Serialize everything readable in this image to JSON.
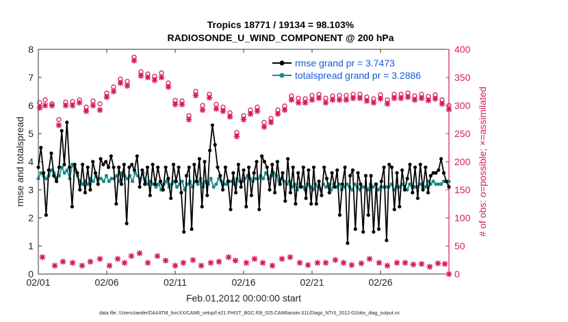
{
  "chart_data": {
    "type": "line",
    "title": "Tropics 18771 / 19134 = 98.103%",
    "subtitle": "RADIOSONDE_U_WIND_COMPONENT @ 200 hPa",
    "xlabel": "Feb.01,2012 00:00:00 start",
    "ylabel": "rmse and totalspread",
    "ylabel_right": "# of obs: o=possible; ×=assimilated",
    "ylim": [
      0,
      8
    ],
    "ylim_right": [
      0,
      400
    ],
    "xlim": [
      0,
      30
    ],
    "x_tick_values": [
      0,
      5,
      10,
      15,
      20,
      25
    ],
    "x_tick_labels": [
      "02/01",
      "02/06",
      "02/11",
      "02/16",
      "02/21",
      "02/26"
    ],
    "y_ticks": [
      "0",
      "1",
      "2",
      "3",
      "4",
      "5",
      "6",
      "7",
      "8"
    ],
    "y_ticks_right": [
      "0",
      "50",
      "100",
      "150",
      "200",
      "250",
      "300",
      "350",
      "400"
    ],
    "colors": {
      "rmse": "#000000",
      "spread": "#1a8a8a",
      "obs": "#d6195f",
      "legend_text": "#1559d6"
    },
    "series": [
      {
        "name": "rmse grand pr = 3.7473",
        "values": [
          3.8,
          4.5,
          3.6,
          2.1,
          3.7,
          4.3,
          3.5,
          3.3,
          3.8,
          5.1,
          3.9,
          5.4,
          3.8,
          2.4,
          3.9,
          3.6,
          3.0,
          3.9,
          2.9,
          3.8,
          3.0,
          4.0,
          3.6,
          3.2,
          4.1,
          3.9,
          4.0,
          3.8,
          4.2,
          3.8,
          2.5,
          3.8,
          3.2,
          3.9,
          1.8,
          3.8,
          3.9,
          3.7,
          4.2,
          3.1,
          3.7,
          3.2,
          3.8,
          2.8,
          3.9,
          3.2,
          3.8,
          3.3,
          3.0,
          3.8,
          3.4,
          2.7,
          3.9,
          3.3,
          3.8,
          2.9,
          1.5,
          3.5,
          3.8,
          1.6,
          3.9,
          3.3,
          4.1,
          2.4,
          4.0,
          2.8,
          4.4,
          5.3,
          4.6,
          3.8,
          3.5,
          3.0,
          3.8,
          3.3,
          2.3,
          3.6,
          2.9,
          3.9,
          3.1,
          3.7,
          2.4,
          3.8,
          2.8,
          3.6,
          4.0,
          2.3,
          4.2,
          4.0,
          3.8,
          3.0,
          3.9,
          2.9,
          4.0,
          3.2,
          3.6,
          2.6,
          4.1,
          2.9,
          3.8,
          2.5,
          3.6,
          3.1,
          3.8,
          2.7,
          3.7,
          2.5,
          3.8,
          2.5,
          3.3,
          2.8,
          3.8,
          3.4,
          2.9,
          3.6,
          3.1,
          3.7,
          2.1,
          3.2,
          3.8,
          1.1,
          3.5,
          3.7,
          1.6,
          3.6,
          3.2,
          1.5,
          3.5,
          2.1,
          3.5,
          1.5,
          3.2,
          1.6,
          3.3,
          3.8,
          1.2,
          3.9,
          3.8,
          2.3,
          3.6,
          2.4,
          3.7,
          3.0,
          3.4,
          3.9,
          2.9,
          3.8,
          2.7,
          3.9,
          3.0,
          3.8,
          2.9,
          3.5,
          3.6,
          3.6,
          3.7,
          4.1,
          3.6,
          3.3,
          3.1
        ]
      },
      {
        "name": "totalspread grand pr = 3.2886",
        "values": [
          3.4,
          3.6,
          3.5,
          3.4,
          3.5,
          3.7,
          3.6,
          3.4,
          3.5,
          3.8,
          3.6,
          3.7,
          3.4,
          3.9,
          3.7,
          3.5,
          3.3,
          3.2,
          3.3,
          3.2,
          3.4,
          3.3,
          3.5,
          3.4,
          3.4,
          3.3,
          3.5,
          3.3,
          3.4,
          3.4,
          3.5,
          3.3,
          3.6,
          3.5,
          3.4,
          3.5,
          3.3,
          3.6,
          3.5,
          3.4,
          3.6,
          3.3,
          3.2,
          3.3,
          3.2,
          3.1,
          3.2,
          3.0,
          3.2,
          3.3,
          3.1,
          3.2,
          3.3,
          3.1,
          3.2,
          3.3,
          3.0,
          3.2,
          3.3,
          3.1,
          3.3,
          3.2,
          3.4,
          3.1,
          3.3,
          3.2,
          3.4,
          3.1,
          3.2,
          3.4,
          3.3,
          3.2,
          3.2,
          3.3,
          3.3,
          3.2,
          3.4,
          3.3,
          3.3,
          3.4,
          3.5,
          3.4,
          3.3,
          3.4,
          3.4,
          3.5,
          3.4,
          3.6,
          3.4,
          3.5,
          3.6,
          3.5,
          3.3,
          3.4,
          3.3,
          3.2,
          3.3,
          3.1,
          3.2,
          3.0,
          3.2,
          3.1,
          3.0,
          3.2,
          3.1,
          3.0,
          3.2,
          3.1,
          3.0,
          3.2,
          3.1,
          3.2,
          3.0,
          3.2,
          3.1,
          3.2,
          3.0,
          3.1,
          3.2,
          3.1,
          3.0,
          3.2,
          3.1,
          3.0,
          3.1,
          3.1,
          3.0,
          3.2,
          3.1,
          3.2,
          3.0,
          3.1,
          3.1,
          3.1,
          3.1,
          3.2,
          3.0,
          3.1,
          3.1,
          3.2,
          3.1,
          3.0,
          3.2,
          3.1,
          3.1,
          3.1,
          3.2,
          3.1,
          3.1,
          3.3,
          3.2,
          3.3,
          3.2,
          3.2,
          3.2,
          3.3,
          3.3,
          3.3
        ]
      }
    ],
    "possible_obs": [
      [
        0.1,
        305
      ],
      [
        0.5,
        310
      ],
      [
        1.0,
        303
      ],
      [
        1.5,
        275
      ],
      [
        2.0,
        306
      ],
      [
        2.5,
        307
      ],
      [
        3.0,
        310
      ],
      [
        3.5,
        297
      ],
      [
        4.0,
        308
      ],
      [
        4.5,
        303
      ],
      [
        5.0,
        322
      ],
      [
        5.5,
        333
      ],
      [
        6.0,
        347
      ],
      [
        6.5,
        343
      ],
      [
        7.0,
        386
      ],
      [
        7.5,
        360
      ],
      [
        8.0,
        356
      ],
      [
        8.5,
        352
      ],
      [
        9.0,
        358
      ],
      [
        9.5,
        340
      ],
      [
        10.0,
        309
      ],
      [
        10.5,
        308
      ],
      [
        11.0,
        282
      ],
      [
        11.5,
        325
      ],
      [
        12.0,
        300
      ],
      [
        12.5,
        320
      ],
      [
        13.0,
        302
      ],
      [
        13.5,
        297
      ],
      [
        14.0,
        287
      ],
      [
        14.5,
        252
      ],
      [
        15.0,
        282
      ],
      [
        15.5,
        292
      ],
      [
        16.0,
        297
      ],
      [
        16.5,
        270
      ],
      [
        17.0,
        277
      ],
      [
        17.5,
        292
      ],
      [
        18.0,
        299
      ],
      [
        18.5,
        317
      ],
      [
        19.0,
        313
      ],
      [
        19.5,
        312
      ],
      [
        20.0,
        318
      ],
      [
        20.5,
        320
      ],
      [
        21.0,
        313
      ],
      [
        21.5,
        317
      ],
      [
        22.0,
        318
      ],
      [
        22.5,
        318
      ],
      [
        23.0,
        320
      ],
      [
        23.5,
        320
      ],
      [
        24.0,
        315
      ],
      [
        24.5,
        312
      ],
      [
        25.0,
        319
      ],
      [
        25.5,
        310
      ],
      [
        26.0,
        320
      ],
      [
        26.5,
        320
      ],
      [
        27.0,
        322
      ],
      [
        27.5,
        317
      ],
      [
        28.0,
        320
      ],
      [
        28.5,
        316
      ],
      [
        29.0,
        319
      ],
      [
        29.5,
        310
      ],
      [
        30.0,
        300
      ]
    ],
    "assimilated_obs": [
      [
        0.1,
        296
      ],
      [
        0.5,
        300
      ],
      [
        1.0,
        300
      ],
      [
        1.5,
        265
      ],
      [
        2.0,
        300
      ],
      [
        2.5,
        300
      ],
      [
        3.0,
        305
      ],
      [
        3.5,
        290
      ],
      [
        4.0,
        300
      ],
      [
        4.5,
        292
      ],
      [
        5.0,
        315
      ],
      [
        5.5,
        325
      ],
      [
        6.0,
        340
      ],
      [
        6.5,
        335
      ],
      [
        7.0,
        380
      ],
      [
        7.5,
        353
      ],
      [
        8.0,
        350
      ],
      [
        8.5,
        345
      ],
      [
        9.0,
        350
      ],
      [
        9.5,
        333
      ],
      [
        10.0,
        302
      ],
      [
        10.5,
        302
      ],
      [
        11.0,
        275
      ],
      [
        11.5,
        318
      ],
      [
        12.0,
        292
      ],
      [
        12.5,
        314
      ],
      [
        13.0,
        294
      ],
      [
        13.5,
        290
      ],
      [
        14.0,
        280
      ],
      [
        14.5,
        245
      ],
      [
        15.0,
        275
      ],
      [
        15.5,
        285
      ],
      [
        16.0,
        290
      ],
      [
        16.5,
        262
      ],
      [
        17.0,
        270
      ],
      [
        17.5,
        285
      ],
      [
        18.0,
        292
      ],
      [
        18.5,
        310
      ],
      [
        19.0,
        305
      ],
      [
        19.5,
        305
      ],
      [
        20.0,
        310
      ],
      [
        20.5,
        313
      ],
      [
        21.0,
        305
      ],
      [
        21.5,
        310
      ],
      [
        22.0,
        310
      ],
      [
        22.5,
        310
      ],
      [
        23.0,
        313
      ],
      [
        23.5,
        313
      ],
      [
        24.0,
        308
      ],
      [
        24.5,
        305
      ],
      [
        25.0,
        312
      ],
      [
        25.5,
        303
      ],
      [
        26.0,
        313
      ],
      [
        26.5,
        313
      ],
      [
        27.0,
        315
      ],
      [
        27.5,
        310
      ],
      [
        28.0,
        313
      ],
      [
        28.5,
        309
      ],
      [
        29.0,
        312
      ],
      [
        29.5,
        303
      ],
      [
        30.0,
        293
      ],
      [
        0.3,
        30
      ],
      [
        1.2,
        15
      ],
      [
        1.8,
        22
      ],
      [
        2.5,
        20
      ],
      [
        3.2,
        15
      ],
      [
        3.8,
        22
      ],
      [
        4.5,
        27
      ],
      [
        5.2,
        15
      ],
      [
        5.8,
        27
      ],
      [
        6.3,
        20
      ],
      [
        6.8,
        32
      ],
      [
        7.4,
        37
      ],
      [
        8.0,
        20
      ],
      [
        8.7,
        32
      ],
      [
        9.3,
        24
      ],
      [
        10.0,
        15
      ],
      [
        10.6,
        20
      ],
      [
        11.3,
        25
      ],
      [
        11.9,
        15
      ],
      [
        12.6,
        20
      ],
      [
        13.2,
        22
      ],
      [
        13.9,
        30
      ],
      [
        14.4,
        24
      ],
      [
        15.2,
        20
      ],
      [
        15.8,
        27
      ],
      [
        16.4,
        20
      ],
      [
        17.1,
        15
      ],
      [
        17.8,
        27
      ],
      [
        18.4,
        30
      ],
      [
        19.1,
        20
      ],
      [
        19.7,
        16
      ],
      [
        20.4,
        20
      ],
      [
        21.0,
        20
      ],
      [
        21.7,
        25
      ],
      [
        22.3,
        20
      ],
      [
        22.9,
        16
      ],
      [
        23.6,
        19
      ],
      [
        24.2,
        27
      ],
      [
        24.9,
        20
      ],
      [
        25.5,
        15
      ],
      [
        26.2,
        20
      ],
      [
        26.8,
        20
      ],
      [
        27.4,
        17
      ],
      [
        28.0,
        18
      ],
      [
        28.6,
        13
      ],
      [
        29.2,
        19
      ],
      [
        29.7,
        18
      ],
      [
        30.0,
        0
      ]
    ]
  },
  "footnote": "data file: /Users/raeder/DAI/ATM_forcXX/CAM6_setup/f.e21.FHIST_BGC.f09_025.CAM6assim.011/Diags_NTrS_2012-02/obs_diag_output.nc"
}
